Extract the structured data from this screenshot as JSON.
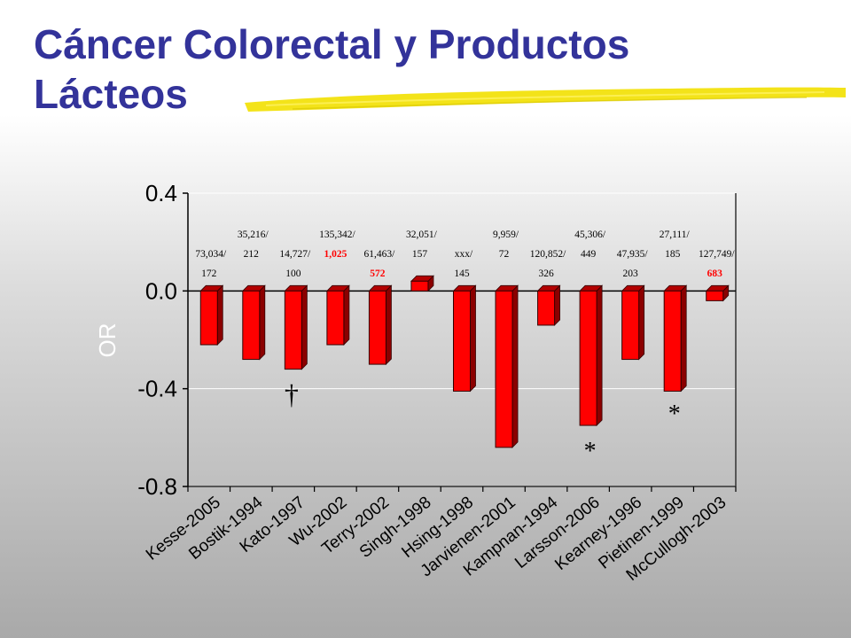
{
  "slide": {
    "title_line1": "Cáncer Colorectal y Productos",
    "title_line2": "Lácteos"
  },
  "colors": {
    "title": "#33339a",
    "bar_front": "#ff0000",
    "bar_side": "#8b0000",
    "bar_top": "#b30000",
    "highlight": "#f2e000",
    "red_label": "#ff0000"
  },
  "chart_data": {
    "type": "bar",
    "title": "",
    "xlabel": "",
    "ylabel": "OR",
    "ylim": [
      -0.8,
      0.4
    ],
    "yticks": [
      "0.4",
      "0.0",
      "-0.4",
      "-0.8"
    ],
    "ytick_values": [
      0.4,
      0.0,
      -0.4,
      -0.8
    ],
    "grid": "horizontal",
    "categories": [
      "Kesse-2005",
      "Bostik-1994",
      "Kato-1997",
      "Wu-2002",
      "Terry-2002",
      "Singh-1998",
      "Hsing-1998",
      "Jarvienen-2001",
      "Kampnan-1994",
      "Larsson-2006",
      "Kearney-1996",
      "Pietinen-1999",
      "McCullogh-2003"
    ],
    "values": [
      -0.22,
      -0.28,
      -0.32,
      -0.22,
      -0.3,
      0.04,
      -0.41,
      -0.64,
      -0.14,
      -0.55,
      -0.28,
      -0.41,
      -0.04
    ],
    "annotations": [
      {
        "top": "73,034/",
        "bottom": "172",
        "bottom_red": false
      },
      {
        "top": "35,216/",
        "bottom": "212",
        "bottom_red": false
      },
      {
        "top": "14,727/",
        "bottom": "100",
        "bottom_red": false
      },
      {
        "top": "135,342/",
        "bottom": "1,025",
        "bottom_red": true
      },
      {
        "top": "61,463/",
        "bottom": "572",
        "bottom_red": true
      },
      {
        "top": "32,051/",
        "bottom": "157",
        "bottom_red": false
      },
      {
        "top": "xxx/",
        "bottom": "145",
        "bottom_red": false
      },
      {
        "top": "9,959/",
        "bottom": "72",
        "bottom_red": false
      },
      {
        "top": "120,852/",
        "bottom": "326",
        "bottom_red": false
      },
      {
        "top": "45,306/",
        "bottom": "449",
        "bottom_red": false
      },
      {
        "top": "47,935/",
        "bottom": "203",
        "bottom_red": false
      },
      {
        "top": "27,111/",
        "bottom": "185",
        "bottom_red": false
      },
      {
        "top": "127,749/",
        "bottom": "683",
        "bottom_red": true
      }
    ],
    "markers": [
      {
        "symbol": "†",
        "category": "Kato-1997"
      },
      {
        "symbol": "*",
        "category": "Larsson-2006"
      },
      {
        "symbol": "*",
        "category": "Pietinen-1999"
      }
    ]
  }
}
